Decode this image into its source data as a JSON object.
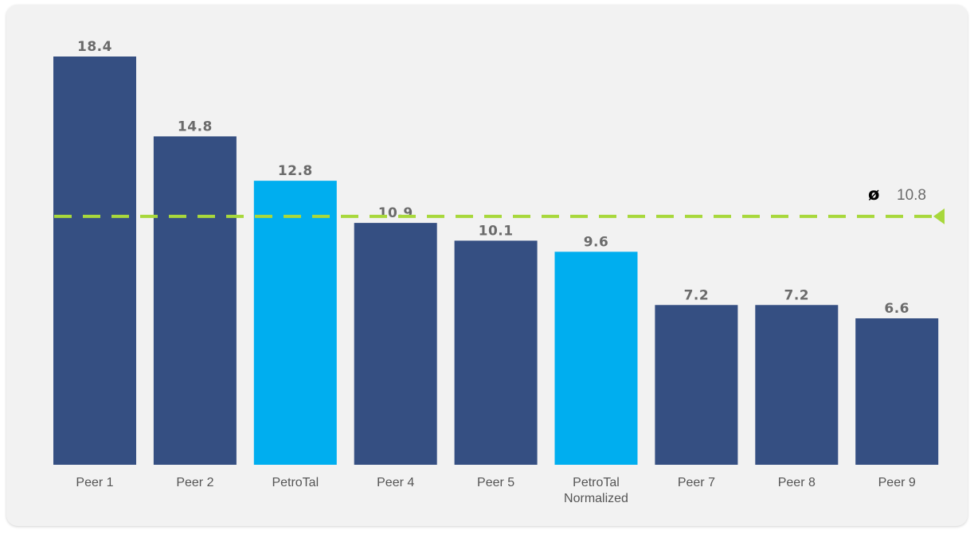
{
  "chart_data": {
    "type": "bar",
    "categories": [
      "Peer 1",
      "Peer 2",
      "PetroTal",
      "Peer 4",
      "Peer 5",
      "PetroTal Normalized",
      "Peer 7",
      "Peer 8",
      "Peer 9"
    ],
    "values": [
      18.4,
      14.8,
      12.8,
      10.9,
      10.1,
      9.6,
      7.2,
      7.2,
      6.6
    ],
    "value_labels": [
      "18.4",
      "14.8",
      "12.8",
      "10.9",
      "10.1",
      "9.6",
      "7.2",
      "7.2",
      "6.6"
    ],
    "highlighted": [
      "PetroTal",
      "PetroTal Normalized"
    ],
    "average": {
      "symbol": "ø",
      "value": 10.8,
      "label": "10.8"
    },
    "ylim": [
      0,
      18.4
    ],
    "grid": false,
    "legend": "none",
    "colors": {
      "bar": "#354f82",
      "highlight": "#00aeef",
      "average_line": "#a8d83c",
      "value_label": "#6b6b6b",
      "category_label": "#555555",
      "background": "#f2f2f2"
    }
  }
}
